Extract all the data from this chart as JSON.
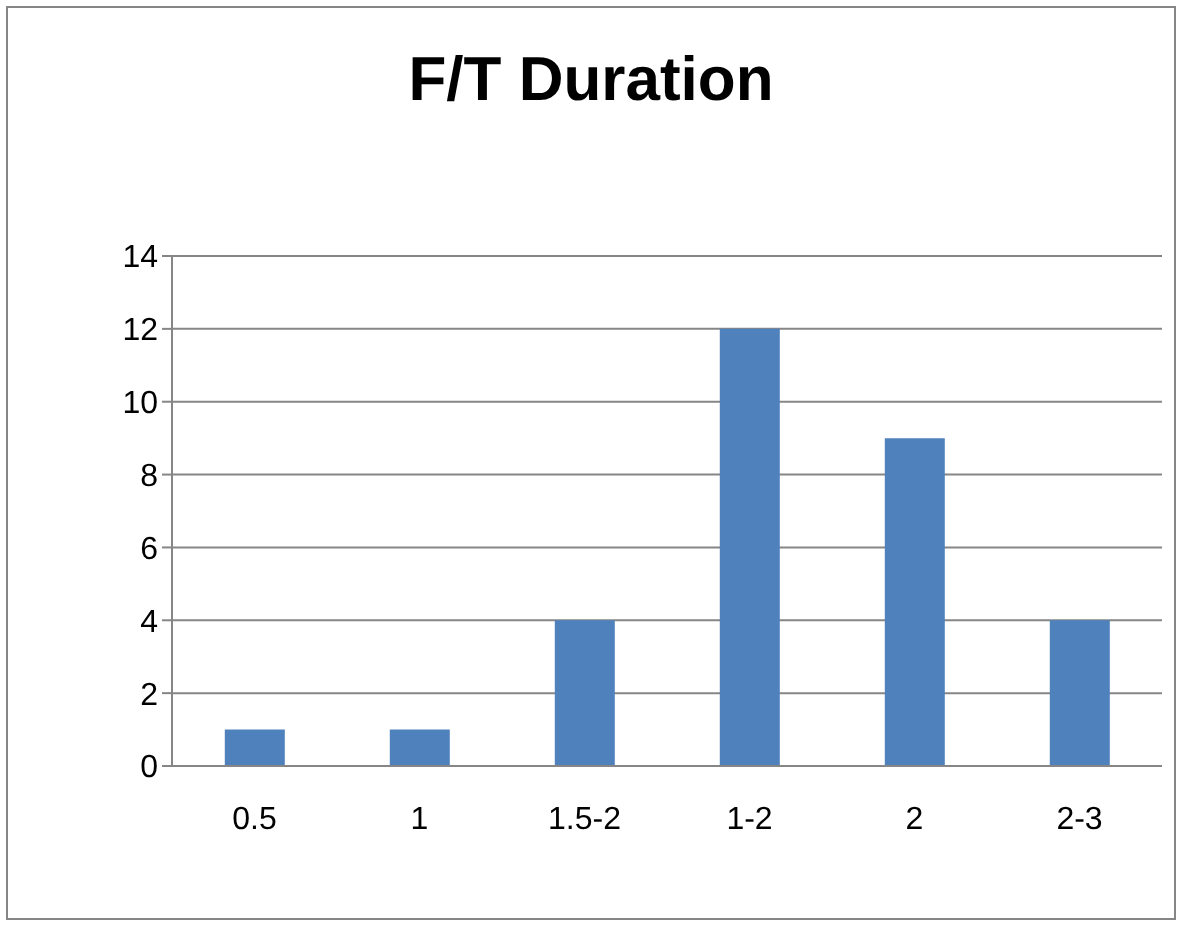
{
  "chart_data": {
    "type": "bar",
    "title": "F/T Duration",
    "categories": [
      "0.5",
      "1",
      "1.5-2",
      "1-2",
      "2",
      "2-3"
    ],
    "values": [
      1,
      1,
      4,
      12,
      9,
      4
    ],
    "color": "#4f81bd",
    "ylim": [
      0,
      14
    ],
    "yticks": [
      0,
      2,
      4,
      6,
      8,
      10,
      12,
      14
    ],
    "grid": "y",
    "legend": false
  }
}
